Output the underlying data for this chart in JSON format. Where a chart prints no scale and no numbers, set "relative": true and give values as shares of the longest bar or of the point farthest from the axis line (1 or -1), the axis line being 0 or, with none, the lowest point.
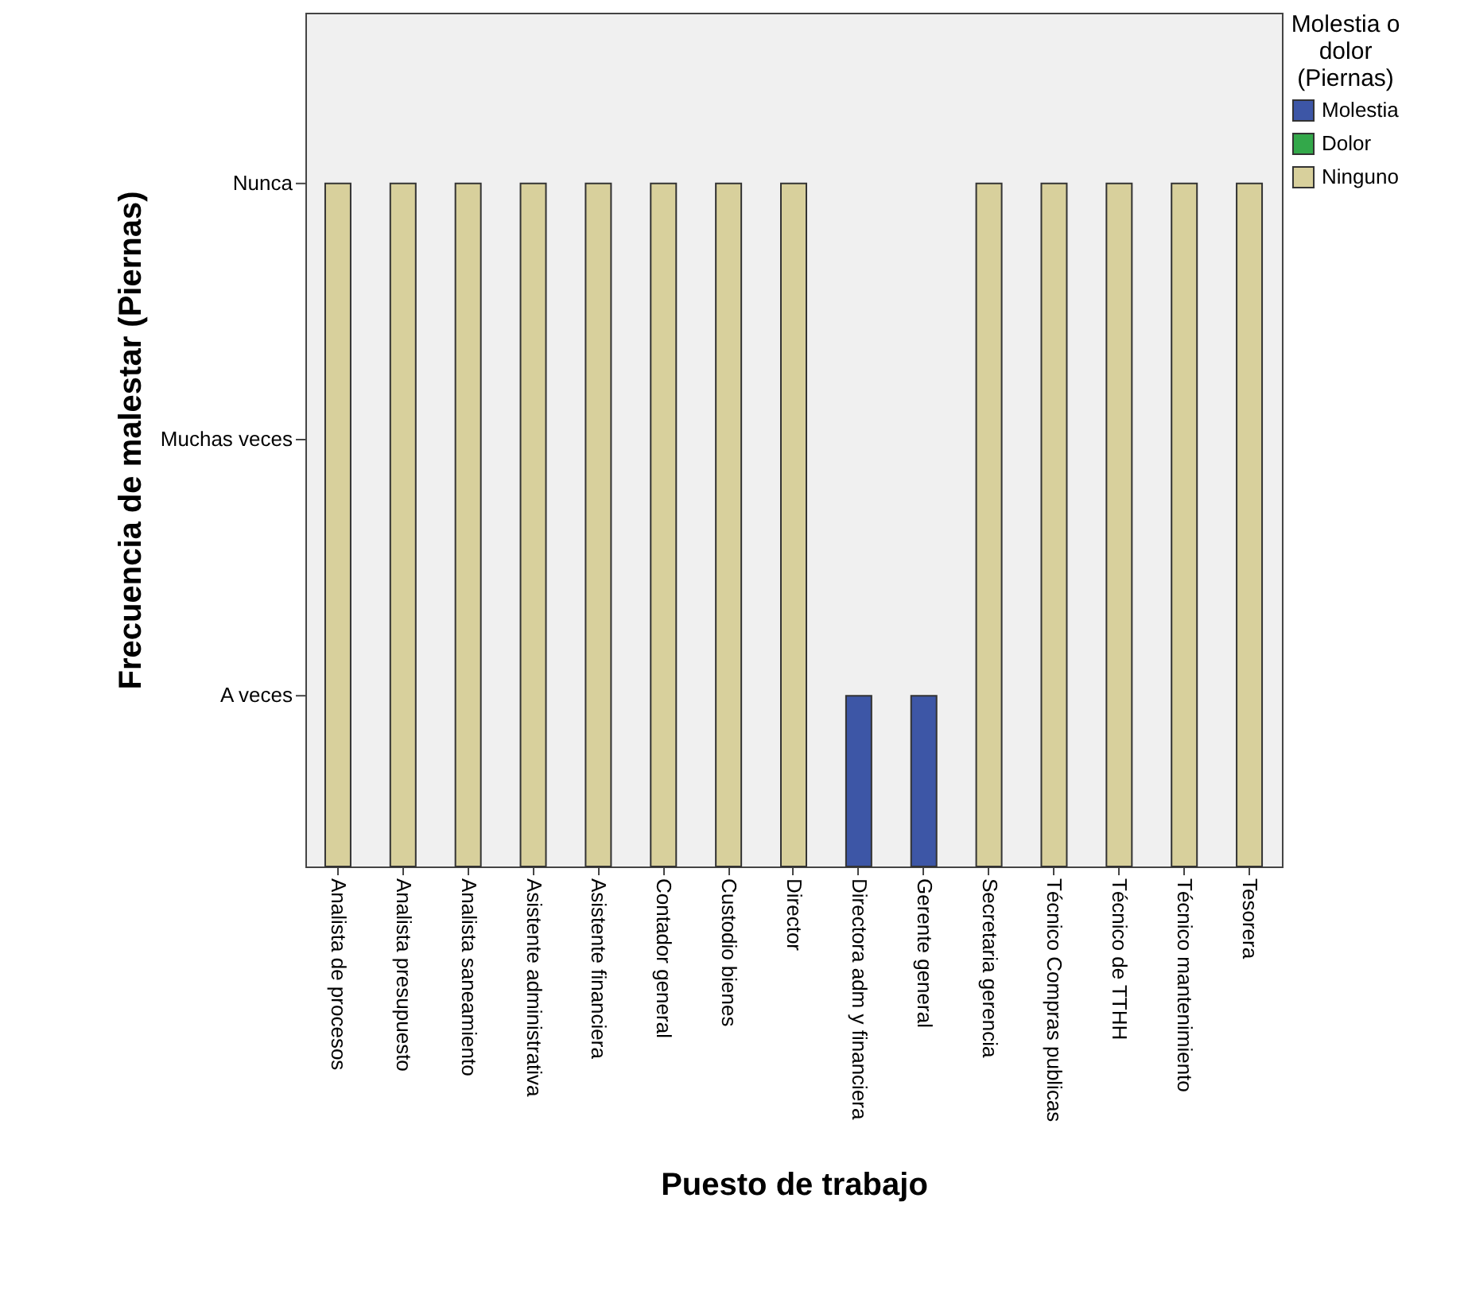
{
  "chart_data": {
    "type": "bar",
    "categories": [
      "Analista de procesos",
      "Analista presupuesto",
      "Analista saneamiento",
      "Asistente administrativa",
      "Asistente financiera",
      "Contador general",
      "Custodio bienes",
      "Director",
      "Directora adm y financiera",
      "Gerente general",
      "Secretaria gerencia",
      "Técnico Compras publicas",
      "Técnico de TTHH",
      "Técnico mantenimiento",
      "Tesorera"
    ],
    "series": [
      {
        "name": "Molestia",
        "color": "#3d56a6",
        "values": [
          null,
          null,
          null,
          null,
          null,
          null,
          null,
          null,
          0.25,
          0.25,
          null,
          null,
          null,
          null,
          null
        ]
      },
      {
        "name": "Dolor",
        "color": "#33a84a",
        "values": [
          null,
          null,
          null,
          null,
          null,
          null,
          null,
          null,
          null,
          null,
          null,
          null,
          null,
          null,
          null
        ]
      },
      {
        "name": "Ninguno",
        "color": "#d8d09c",
        "values": [
          1,
          1,
          1,
          1,
          1,
          1,
          1,
          1,
          null,
          null,
          1,
          1,
          1,
          1,
          1
        ]
      }
    ],
    "xlabel": "Puesto de trabajo",
    "ylabel": "Frecuencia de malestar (Piernas)",
    "legend_title": "Molestia o dolor (Piernas)",
    "relative": true,
    "annotations": [
      "A veces",
      "Muchas veces",
      "Nunca"
    ],
    "legend": "top right"
  }
}
